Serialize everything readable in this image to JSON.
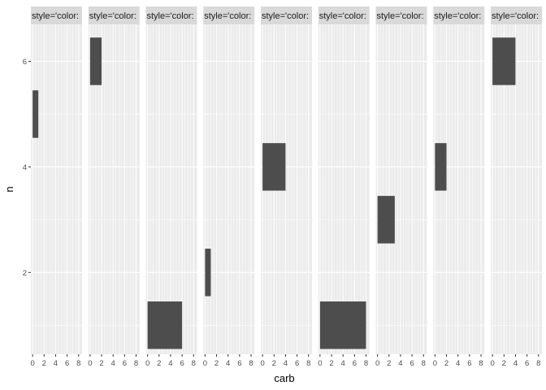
{
  "chart_data": {
    "type": "bar",
    "facet_strip_labels": [
      "style='color:",
      "style='color:",
      "style='color:",
      "style='color:",
      "style='color:",
      "style='color:",
      "style='color:",
      "style='color:",
      "style='color:"
    ],
    "xlabel": "carb",
    "ylabel": "n",
    "x_ticks": [
      0,
      2,
      4,
      6,
      8
    ],
    "y_ticks": [
      2,
      4,
      6
    ],
    "xlim": [
      -0.3,
      8.6
    ],
    "ylim": [
      0.45,
      6.7
    ],
    "grid": true,
    "panels": [
      {
        "bars": [
          {
            "x_min": 0,
            "x_max": 1,
            "n": 5
          }
        ]
      },
      {
        "bars": [
          {
            "x_min": 0,
            "x_max": 2,
            "n": 6
          }
        ]
      },
      {
        "bars": [
          {
            "x_min": 0,
            "x_max": 6,
            "n": 1
          }
        ]
      },
      {
        "bars": [
          {
            "x_min": 0,
            "x_max": 1,
            "n": 2
          }
        ]
      },
      {
        "bars": [
          {
            "x_min": 0,
            "x_max": 4,
            "n": 4
          }
        ]
      },
      {
        "bars": [
          {
            "x_min": 0,
            "x_max": 8,
            "n": 1
          }
        ]
      },
      {
        "bars": [
          {
            "x_min": 0,
            "x_max": 3,
            "n": 3
          }
        ]
      },
      {
        "bars": [
          {
            "x_min": 0,
            "x_max": 2,
            "n": 4
          }
        ]
      },
      {
        "bars": [
          {
            "x_min": 0,
            "x_max": 4,
            "n": 6
          }
        ]
      }
    ],
    "colors": {
      "panel_background": "#ebebeb",
      "strip_background": "#d9d9d9",
      "grid_major": "#ffffff",
      "grid_minor": "#f7f7f7",
      "bar_fill": "#4d4d4d"
    }
  }
}
